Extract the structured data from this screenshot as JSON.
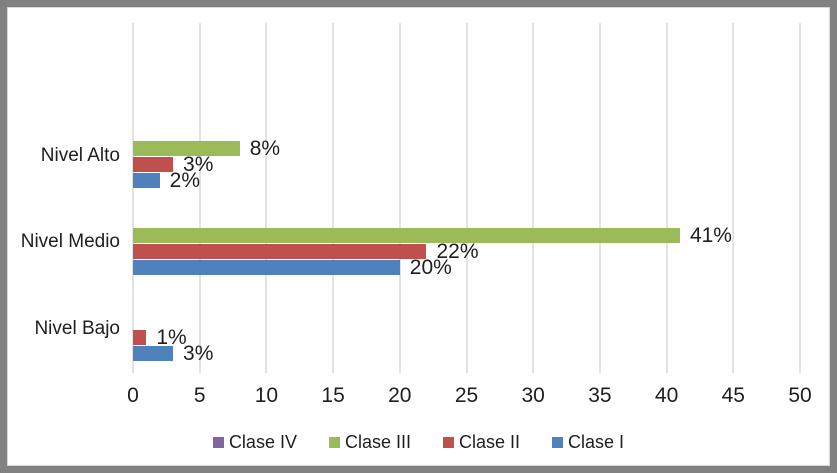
{
  "window": {
    "background": "#FFFFFF",
    "frame_border_color": "#818181",
    "frame_inner_line_color": "#D8D8D8"
  },
  "chart_data": {
    "type": "bar",
    "orientation": "horizontal",
    "title": "",
    "categories": [
      "Nivel Alto",
      "Nivel Medio",
      "Nivel Bajo"
    ],
    "series": [
      {
        "name": "Clase IV",
        "color": "#8064A2",
        "values": [
          0,
          0,
          0
        ],
        "labels": [
          "",
          "",
          ""
        ]
      },
      {
        "name": "Clase III",
        "color": "#9BBB59",
        "values": [
          8,
          41,
          0
        ],
        "labels": [
          "8%",
          "41%",
          ""
        ]
      },
      {
        "name": "Clase II",
        "color": "#C0504D",
        "values": [
          3,
          22,
          1
        ],
        "labels": [
          "3%",
          "22%",
          "1%"
        ]
      },
      {
        "name": "Clase I",
        "color": "#4F81BD",
        "values": [
          2,
          20,
          3
        ],
        "labels": [
          "2%",
          "20%",
          "3%"
        ]
      }
    ],
    "x_axis": {
      "min": 0,
      "max": 50,
      "step": 5,
      "ticks": [
        "0",
        "5",
        "10",
        "15",
        "20",
        "25",
        "30",
        "35",
        "40",
        "45",
        "50"
      ]
    },
    "y_axis": {
      "labels": [
        "Nivel Alto",
        "Nivel Medio",
        "Nivel Bajo"
      ]
    },
    "legend": {
      "position": "bottom",
      "entries": [
        "Clase IV",
        "Clase III",
        "Clase II",
        "Clase I"
      ]
    },
    "gridlines": {
      "show": true,
      "color": "#E2E2E2"
    },
    "data_label_note": "labels shown only for non-zero bars",
    "text_color": "#1E1E1E"
  }
}
